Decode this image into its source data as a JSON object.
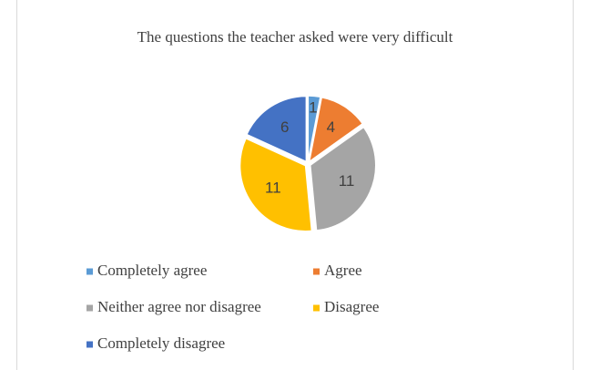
{
  "chart_data": {
    "type": "pie",
    "title": "The questions the teacher asked were very difficult",
    "categories": [
      "Completely agree",
      "Agree",
      "Neither agree nor disagree",
      "Disagree",
      "Completely disagree"
    ],
    "values": [
      1,
      4,
      11,
      11,
      6
    ],
    "colors": [
      "#5B9BD5",
      "#ED7D31",
      "#A5A5A5",
      "#FFC000",
      "#4472C4"
    ],
    "legend": "bottom"
  }
}
